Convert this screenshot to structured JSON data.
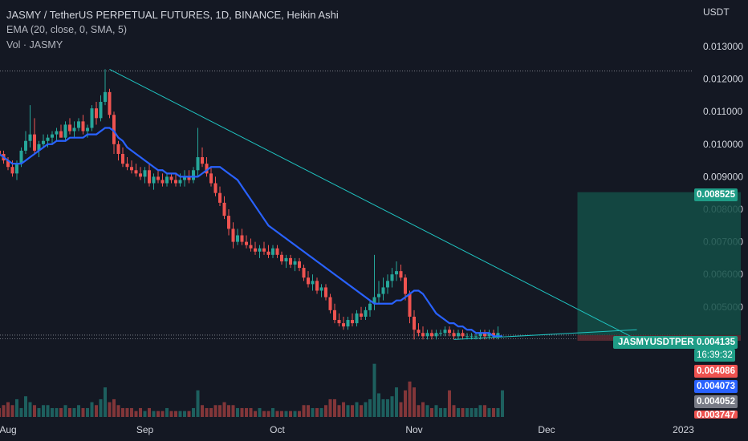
{
  "legend": {
    "title": "JASMY / TetherUS PERPETUAL FUTURES, 1D, BINANCE, Heikin Ashi",
    "ema": "EMA (20, close, 0, SMA, 5)",
    "vol": "Vol · JASMY"
  },
  "axis_unit": "USDT",
  "symbol_tag": "JASMYUSDTPERP",
  "price_tags": {
    "target": "0.008525",
    "last": "0.004135",
    "countdown": "16:39:32",
    "red": "0.004086",
    "blue": "0.004073",
    "gray": "0.004052",
    "cut": "0.003747"
  },
  "colors": {
    "background": "#141823",
    "up": "#26a69a",
    "down": "#ef5350",
    "ema": "#2962ff",
    "trendline": "#1fc3c0",
    "target_zone": "#134f46",
    "stop_zone": "#5a2a32",
    "grid_text": "#d1d4dc"
  },
  "chart_data": {
    "type": "candlestick",
    "title": "JASMY / TetherUS PERPETUAL FUTURES, 1D, BINANCE, Heikin Ashi",
    "y_ticks": [
      "0.013000",
      "0.012000",
      "0.011000",
      "0.010000",
      "0.009000",
      "0.008000",
      "0.007000",
      "0.006000",
      "0.005000"
    ],
    "y_tick_values": [
      0.013,
      0.012,
      0.011,
      0.01,
      0.009,
      0.008,
      0.007,
      0.006,
      0.005
    ],
    "ylim": [
      0.0037,
      0.0138
    ],
    "x_ticks": [
      {
        "label": "Aug",
        "day": 3
      },
      {
        "label": "Sep",
        "day": 34
      },
      {
        "label": "Oct",
        "day": 64
      },
      {
        "label": "Nov",
        "day": 95
      },
      {
        "label": "Dec",
        "day": 125
      },
      {
        "label": "2023",
        "day": 156
      }
    ],
    "start_day": 1,
    "ema_close": [
      0.0097,
      0.0096,
      0.0095,
      0.0094,
      0.0094,
      0.0094,
      0.0095,
      0.0096,
      0.0097,
      0.0098,
      0.0099,
      0.01,
      0.01,
      0.0101,
      0.0101,
      0.0101,
      0.0102,
      0.0102,
      0.0102,
      0.0102,
      0.0103,
      0.0103,
      0.0103,
      0.0104,
      0.0105,
      0.0105,
      0.0104,
      0.0102,
      0.0101,
      0.0099,
      0.0098,
      0.0097,
      0.0096,
      0.0095,
      0.0094,
      0.0093,
      0.0092,
      0.0092,
      0.0091,
      0.0091,
      0.0091,
      0.009,
      0.009,
      0.009,
      0.009,
      0.009,
      0.0091,
      0.0092,
      0.0093,
      0.0093,
      0.0093,
      0.0092,
      0.0091,
      0.009,
      0.0089,
      0.0087,
      0.0085,
      0.0083,
      0.0081,
      0.0079,
      0.0077,
      0.0075,
      0.0074,
      0.0073,
      0.0072,
      0.0071,
      0.007,
      0.0069,
      0.0068,
      0.0067,
      0.0066,
      0.0065,
      0.0064,
      0.0063,
      0.0062,
      0.0061,
      0.006,
      0.0059,
      0.0058,
      0.0057,
      0.0056,
      0.0055,
      0.0054,
      0.0053,
      0.0052,
      0.0051,
      0.0051,
      0.0051,
      0.0051,
      0.0051,
      0.0052,
      0.0052,
      0.0053,
      0.0054,
      0.0055,
      0.0055,
      0.0054,
      0.0052,
      0.005,
      0.0048,
      0.0047,
      0.0046,
      0.0045,
      0.0045,
      0.0044,
      0.0044,
      0.0043,
      0.0043,
      0.0042,
      0.0042,
      0.0042,
      0.0042,
      0.0041,
      0.0041,
      0.0041
    ],
    "candles_ohlc": [
      [
        0.0098,
        0.01,
        0.0096,
        0.0097
      ],
      [
        0.0097,
        0.0098,
        0.0094,
        0.0095
      ],
      [
        0.0095,
        0.0096,
        0.0092,
        0.0093
      ],
      [
        0.0093,
        0.0095,
        0.009,
        0.0091
      ],
      [
        0.0091,
        0.0095,
        0.0089,
        0.0094
      ],
      [
        0.0094,
        0.0099,
        0.0093,
        0.0098
      ],
      [
        0.0098,
        0.0104,
        0.0097,
        0.0101
      ],
      [
        0.0101,
        0.0112,
        0.0099,
        0.0103
      ],
      [
        0.0103,
        0.0108,
        0.0097,
        0.0098
      ],
      [
        0.0098,
        0.0101,
        0.0096,
        0.01
      ],
      [
        0.01,
        0.0103,
        0.0099,
        0.0101
      ],
      [
        0.0101,
        0.0103,
        0.0099,
        0.0102
      ],
      [
        0.0102,
        0.0104,
        0.01,
        0.0103
      ],
      [
        0.0103,
        0.0105,
        0.0101,
        0.0104
      ],
      [
        0.0104,
        0.0106,
        0.0102,
        0.0102
      ],
      [
        0.0102,
        0.0107,
        0.0101,
        0.0106
      ],
      [
        0.0106,
        0.0108,
        0.0103,
        0.0104
      ],
      [
        0.0104,
        0.0107,
        0.0102,
        0.0105
      ],
      [
        0.0105,
        0.0108,
        0.0104,
        0.0107
      ],
      [
        0.0107,
        0.0109,
        0.0103,
        0.0104
      ],
      [
        0.0104,
        0.0106,
        0.0102,
        0.0105
      ],
      [
        0.0105,
        0.0112,
        0.0104,
        0.0111
      ],
      [
        0.0111,
        0.0113,
        0.0106,
        0.0108
      ],
      [
        0.0108,
        0.0115,
        0.0107,
        0.0113
      ],
      [
        0.0113,
        0.0123,
        0.0112,
        0.0116
      ],
      [
        0.0116,
        0.0117,
        0.0108,
        0.0109
      ],
      [
        0.0109,
        0.011,
        0.0097,
        0.01
      ],
      [
        0.01,
        0.0101,
        0.0095,
        0.0097
      ],
      [
        0.0097,
        0.0099,
        0.0093,
        0.0094
      ],
      [
        0.0094,
        0.0096,
        0.0092,
        0.0093
      ],
      [
        0.0093,
        0.0095,
        0.0091,
        0.0092
      ],
      [
        0.0092,
        0.0094,
        0.009,
        0.0091
      ],
      [
        0.0091,
        0.0093,
        0.0089,
        0.009
      ],
      [
        0.009,
        0.0093,
        0.0088,
        0.0092
      ],
      [
        0.0092,
        0.0094,
        0.0087,
        0.0088
      ],
      [
        0.0088,
        0.0091,
        0.0086,
        0.009
      ],
      [
        0.009,
        0.0092,
        0.0088,
        0.0089
      ],
      [
        0.0089,
        0.0091,
        0.0087,
        0.0088
      ],
      [
        0.0088,
        0.0091,
        0.0087,
        0.009
      ],
      [
        0.009,
        0.0091,
        0.0088,
        0.0089
      ],
      [
        0.0089,
        0.0091,
        0.0087,
        0.0088
      ],
      [
        0.0088,
        0.0091,
        0.0087,
        0.0089
      ],
      [
        0.0089,
        0.0092,
        0.0087,
        0.009
      ],
      [
        0.009,
        0.0092,
        0.0088,
        0.0089
      ],
      [
        0.0089,
        0.0093,
        0.0088,
        0.0092
      ],
      [
        0.0092,
        0.0105,
        0.009,
        0.0096
      ],
      [
        0.0096,
        0.0099,
        0.0093,
        0.0094
      ],
      [
        0.0094,
        0.0096,
        0.009,
        0.0091
      ],
      [
        0.0091,
        0.0093,
        0.0087,
        0.0088
      ],
      [
        0.0088,
        0.009,
        0.0084,
        0.0085
      ],
      [
        0.0085,
        0.0087,
        0.0081,
        0.0082
      ],
      [
        0.0082,
        0.0084,
        0.0077,
        0.0078
      ],
      [
        0.0078,
        0.008,
        0.0072,
        0.0074
      ],
      [
        0.0074,
        0.0076,
        0.0068,
        0.007
      ],
      [
        0.007,
        0.0074,
        0.0069,
        0.0072
      ],
      [
        0.0072,
        0.0074,
        0.0069,
        0.007
      ],
      [
        0.007,
        0.0072,
        0.0068,
        0.0069
      ],
      [
        0.0069,
        0.0071,
        0.0067,
        0.0068
      ],
      [
        0.0068,
        0.007,
        0.0066,
        0.0067
      ],
      [
        0.0067,
        0.0069,
        0.0065,
        0.0068
      ],
      [
        0.0068,
        0.007,
        0.0066,
        0.0067
      ],
      [
        0.0067,
        0.0069,
        0.0065,
        0.0066
      ],
      [
        0.0066,
        0.0069,
        0.0065,
        0.0068
      ],
      [
        0.0068,
        0.0069,
        0.0065,
        0.0066
      ],
      [
        0.0066,
        0.0067,
        0.0063,
        0.0064
      ],
      [
        0.0064,
        0.0066,
        0.0062,
        0.0065
      ],
      [
        0.0065,
        0.0066,
        0.0062,
        0.0063
      ],
      [
        0.0063,
        0.0065,
        0.0061,
        0.0064
      ],
      [
        0.0064,
        0.0065,
        0.0061,
        0.0062
      ],
      [
        0.0062,
        0.0063,
        0.0058,
        0.0059
      ],
      [
        0.0059,
        0.0061,
        0.0056,
        0.0057
      ],
      [
        0.0057,
        0.006,
        0.0055,
        0.0058
      ],
      [
        0.0058,
        0.0059,
        0.0054,
        0.0055
      ],
      [
        0.0055,
        0.0057,
        0.0053,
        0.0056
      ],
      [
        0.0056,
        0.0057,
        0.0052,
        0.0053
      ],
      [
        0.0053,
        0.0054,
        0.0048,
        0.0049
      ],
      [
        0.0049,
        0.0051,
        0.0045,
        0.0046
      ],
      [
        0.0046,
        0.0048,
        0.0044,
        0.0045
      ],
      [
        0.0045,
        0.0047,
        0.0043,
        0.0044
      ],
      [
        0.0044,
        0.0047,
        0.0043,
        0.0046
      ],
      [
        0.0046,
        0.0048,
        0.0044,
        0.0045
      ],
      [
        0.0045,
        0.0049,
        0.0044,
        0.0048
      ],
      [
        0.0048,
        0.005,
        0.0046,
        0.0047
      ],
      [
        0.0047,
        0.005,
        0.0046,
        0.0049
      ],
      [
        0.0049,
        0.0052,
        0.0047,
        0.0051
      ],
      [
        0.0051,
        0.0066,
        0.0049,
        0.0053
      ],
      [
        0.0053,
        0.0058,
        0.0051,
        0.0054
      ],
      [
        0.0054,
        0.0059,
        0.0052,
        0.0056
      ],
      [
        0.0056,
        0.006,
        0.0054,
        0.0058
      ],
      [
        0.0058,
        0.0062,
        0.0056,
        0.006
      ],
      [
        0.006,
        0.0064,
        0.0058,
        0.0061
      ],
      [
        0.0061,
        0.0063,
        0.0058,
        0.0059
      ],
      [
        0.0059,
        0.006,
        0.0052,
        0.0054
      ],
      [
        0.0054,
        0.0055,
        0.0045,
        0.0047
      ],
      [
        0.0047,
        0.0049,
        0.004,
        0.0043
      ],
      [
        0.0043,
        0.0045,
        0.0041,
        0.0042
      ],
      [
        0.0042,
        0.0044,
        0.004,
        0.0041
      ],
      [
        0.0041,
        0.0043,
        0.004,
        0.0042
      ],
      [
        0.0042,
        0.0043,
        0.004,
        0.0041
      ],
      [
        0.0041,
        0.0043,
        0.004,
        0.0042
      ],
      [
        0.0042,
        0.0043,
        0.0041,
        0.0042
      ],
      [
        0.0042,
        0.0044,
        0.0041,
        0.0043
      ],
      [
        0.0043,
        0.0044,
        0.0041,
        0.0042
      ],
      [
        0.0042,
        0.0043,
        0.004,
        0.0041
      ],
      [
        0.0041,
        0.0043,
        0.004,
        0.0042
      ],
      [
        0.0042,
        0.0043,
        0.004,
        0.0041
      ],
      [
        0.0041,
        0.0042,
        0.004,
        0.0041
      ],
      [
        0.0041,
        0.0042,
        0.004,
        0.0041
      ],
      [
        0.0041,
        0.0042,
        0.004,
        0.0041
      ],
      [
        0.0041,
        0.0043,
        0.004,
        0.0042
      ],
      [
        0.0042,
        0.0043,
        0.004,
        0.0041
      ],
      [
        0.0041,
        0.0043,
        0.004,
        0.0042
      ],
      [
        0.0042,
        0.0043,
        0.004,
        0.0041
      ],
      [
        0.0041,
        0.0044,
        0.004,
        0.0042
      ]
    ],
    "volume_relative": [
      0.3,
      0.4,
      0.5,
      0.4,
      0.6,
      0.3,
      0.7,
      0.5,
      0.4,
      0.3,
      0.4,
      0.4,
      0.3,
      0.3,
      0.3,
      0.4,
      0.3,
      0.3,
      0.4,
      0.3,
      0.3,
      0.5,
      0.4,
      0.6,
      1.0,
      0.5,
      0.6,
      0.4,
      0.3,
      0.3,
      0.3,
      0.2,
      0.3,
      0.2,
      0.3,
      0.2,
      0.2,
      0.2,
      0.3,
      0.2,
      0.2,
      0.2,
      0.2,
      0.2,
      0.3,
      0.9,
      0.4,
      0.3,
      0.3,
      0.4,
      0.4,
      0.5,
      0.4,
      0.4,
      0.3,
      0.3,
      0.3,
      0.3,
      0.2,
      0.3,
      0.2,
      0.2,
      0.3,
      0.2,
      0.2,
      0.2,
      0.2,
      0.2,
      0.2,
      0.4,
      0.4,
      0.3,
      0.3,
      0.3,
      0.4,
      0.6,
      0.6,
      0.4,
      0.5,
      0.4,
      0.4,
      0.5,
      0.4,
      0.5,
      0.6,
      1.8,
      0.8,
      0.6,
      0.6,
      0.7,
      1.0,
      0.5,
      0.9,
      1.2,
      1.0,
      0.4,
      0.5,
      0.4,
      0.3,
      0.4,
      0.3,
      0.3,
      0.9,
      0.4,
      0.3,
      0.3,
      0.3,
      0.3,
      0.3,
      0.4,
      0.4,
      0.3,
      0.3,
      0.3,
      0.9
    ],
    "trendlines": [
      {
        "name": "descending-resistance",
        "from": {
          "day": 26,
          "price": 0.0123
        },
        "to": {
          "day": 140,
          "price": 0.004
        }
      },
      {
        "name": "rising-support",
        "from": {
          "day": 104,
          "price": 0.004
        },
        "to": {
          "day": 140,
          "price": 0.0043
        }
      }
    ],
    "position": {
      "entry": 0.004135,
      "target": 0.008525,
      "stop": 0.00396,
      "start_day": 132,
      "end_day": 169
    },
    "reference_lines": [
      0.01225,
      0.004135,
      0.00402
    ],
    "volume_area_top": 0.00395
  }
}
